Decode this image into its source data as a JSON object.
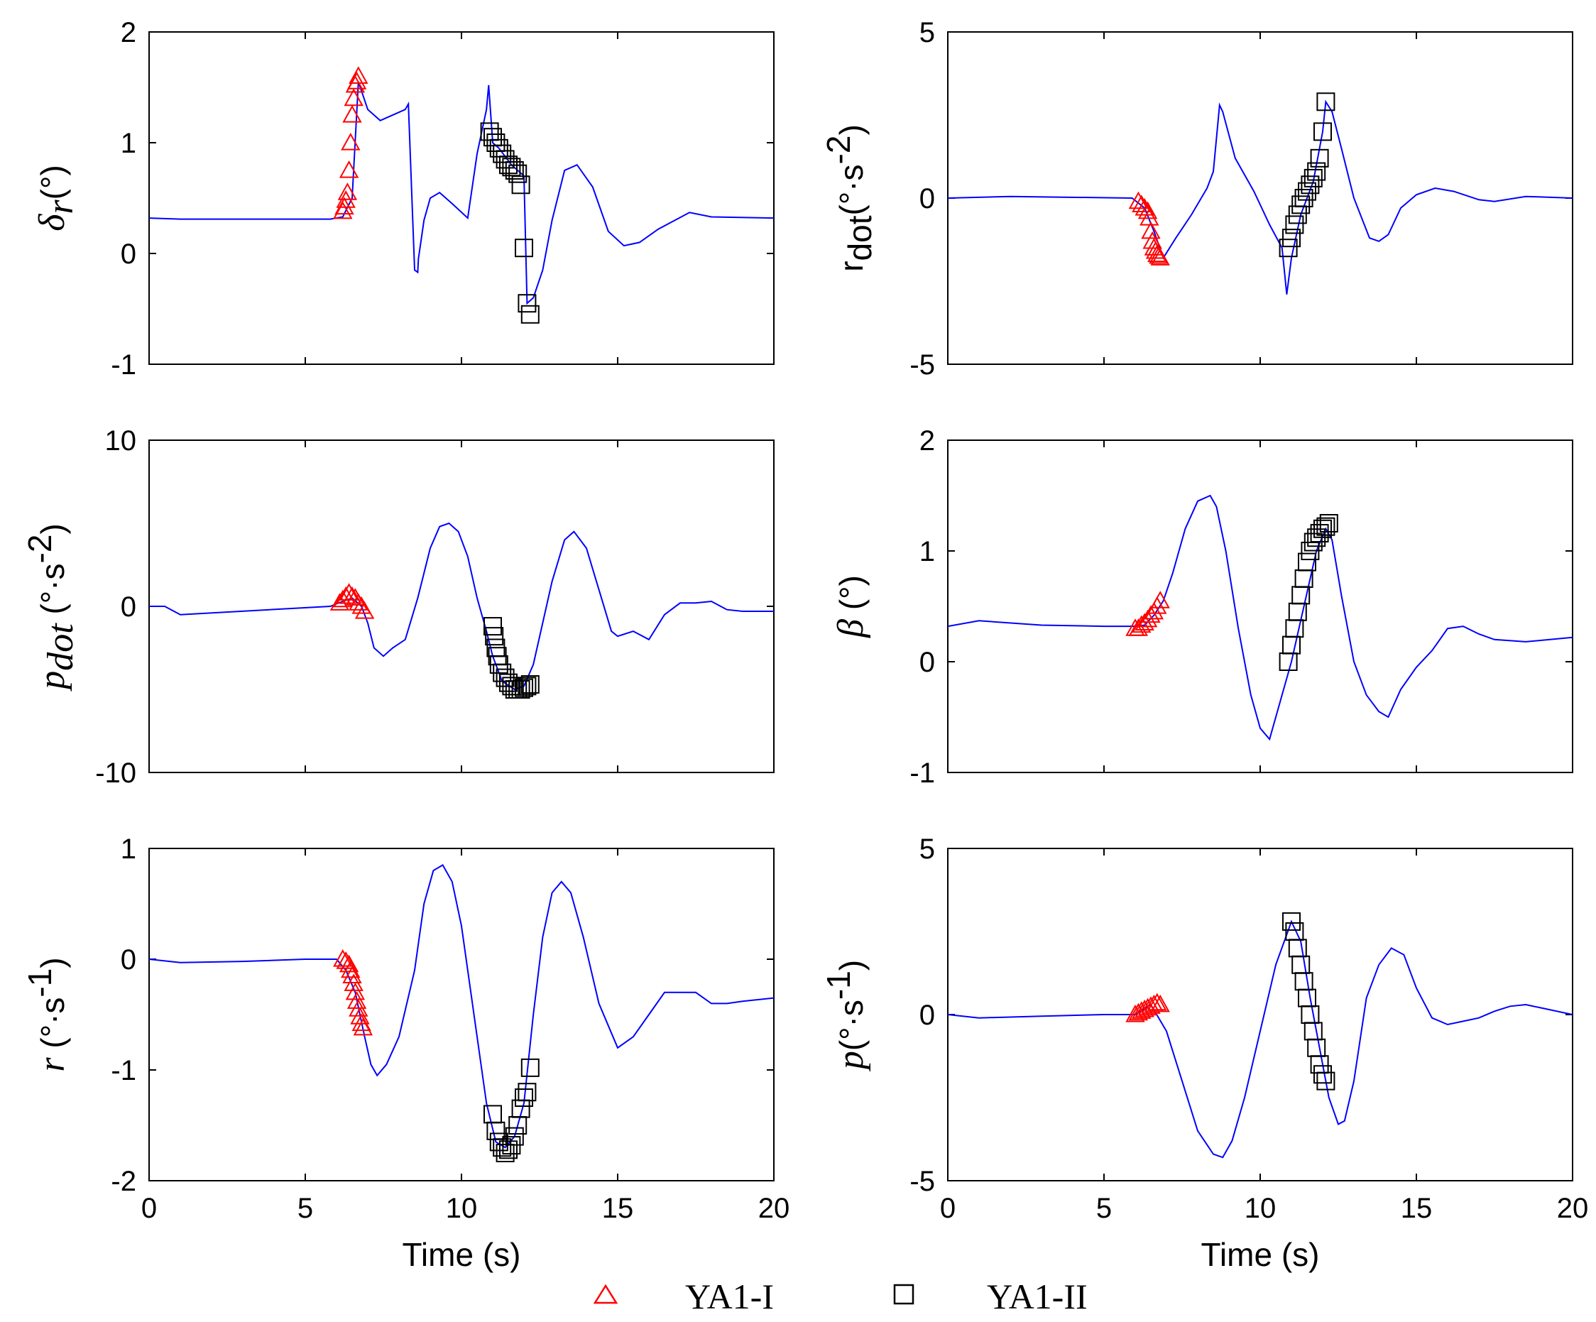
{
  "legend": [
    {
      "label": "YA1-I",
      "marker": "triangle",
      "color": "#ff0000"
    },
    {
      "label": "YA1-II",
      "marker": "square",
      "color": "#000000"
    }
  ],
  "colors": {
    "line": "#0000ff",
    "axes": "#000000"
  },
  "chart_data": [
    {
      "type": "line",
      "ylabel": {
        "sym": "δ",
        "sub": "r",
        "unit": "(°)"
      },
      "xlim": [
        0,
        20
      ],
      "ylim": [
        -1,
        2
      ],
      "xticks": [
        "0",
        "5",
        "10",
        "15",
        "20"
      ],
      "yticks": [
        "-1",
        "0",
        "1",
        "2"
      ],
      "xticklabels_shown": false,
      "xlabel": "",
      "series": [
        {
          "x": [
            0,
            1,
            5.8,
            6.2,
            6.5,
            6.7,
            7.0,
            7.4,
            8.2,
            8.3,
            8.5,
            8.6,
            8.62,
            8.8,
            9.0,
            9.3,
            9.7,
            10.2,
            10.5,
            10.8,
            10.87,
            11.0,
            11.2,
            11.6,
            12.0,
            12.1,
            12.3,
            12.6,
            12.9,
            13.3,
            13.7,
            14.2,
            14.7,
            15.2,
            15.7,
            16.3,
            17.3,
            18.0,
            20
          ],
          "y": [
            0.32,
            0.31,
            0.31,
            0.33,
            0.5,
            1.55,
            1.3,
            1.2,
            1.3,
            1.35,
            -0.15,
            -0.17,
            -0.05,
            0.3,
            0.5,
            0.55,
            0.45,
            0.32,
            0.9,
            1.3,
            1.52,
            1.0,
            0.95,
            0.8,
            0.7,
            -0.45,
            -0.4,
            -0.15,
            0.3,
            0.75,
            0.8,
            0.6,
            0.2,
            0.07,
            0.1,
            0.22,
            0.37,
            0.33,
            0.32
          ]
        }
      ],
      "markers_a": {
        "x": [
          6.2,
          6.25,
          6.3,
          6.35,
          6.4,
          6.45,
          6.5,
          6.55,
          6.6,
          6.65,
          6.7
        ],
        "y": [
          0.38,
          0.42,
          0.48,
          0.55,
          0.75,
          1.0,
          1.25,
          1.4,
          1.52,
          1.55,
          1.6
        ]
      },
      "markers_b": {
        "x": [
          10.9,
          11.0,
          11.1,
          11.2,
          11.3,
          11.4,
          11.5,
          11.6,
          11.7,
          11.8,
          11.9,
          12.0,
          12.1,
          12.2
        ],
        "y": [
          1.1,
          1.05,
          1.0,
          0.95,
          0.9,
          0.85,
          0.8,
          0.78,
          0.75,
          0.72,
          0.62,
          0.05,
          -0.45,
          -0.55
        ]
      }
    },
    {
      "type": "line",
      "ylabel": {
        "sym": "r",
        "sub": "dot",
        "unit": "(°·s",
        "sup": "-2",
        "end": ")",
        "plain": true
      },
      "xlim": [
        0,
        20
      ],
      "ylim": [
        -5,
        5
      ],
      "xticks": [
        "0",
        "5",
        "10",
        "15",
        "20"
      ],
      "yticks": [
        "-5",
        "0",
        "5"
      ],
      "xticklabels_shown": false,
      "xlabel": "",
      "series": [
        {
          "x": [
            0,
            2,
            5.9,
            6.3,
            6.6,
            6.9,
            7.3,
            7.8,
            8.3,
            8.5,
            8.7,
            8.8,
            9.2,
            9.8,
            10.3,
            10.7,
            10.85,
            11.0,
            11.3,
            11.7,
            12.0,
            12.1,
            12.3,
            12.6,
            13.0,
            13.5,
            13.8,
            14.1,
            14.5,
            15.0,
            15.6,
            16.2,
            17.0,
            17.5,
            18.5,
            20
          ],
          "y": [
            0.0,
            0.05,
            0.0,
            -0.3,
            -1.0,
            -1.8,
            -1.2,
            -0.5,
            0.3,
            0.8,
            2.8,
            2.6,
            1.2,
            0.2,
            -0.8,
            -1.5,
            -2.9,
            -1.8,
            -0.5,
            0.5,
            2.0,
            2.9,
            2.6,
            1.5,
            0.0,
            -1.2,
            -1.3,
            -1.1,
            -0.3,
            0.1,
            0.3,
            0.2,
            -0.05,
            -0.1,
            0.05,
            0.0
          ]
        }
      ],
      "markers_a": {
        "x": [
          6.1,
          6.2,
          6.3,
          6.4,
          6.45,
          6.5,
          6.55,
          6.6,
          6.65,
          6.7,
          6.75,
          6.8
        ],
        "y": [
          -0.1,
          -0.2,
          -0.3,
          -0.4,
          -0.6,
          -1.0,
          -1.3,
          -1.5,
          -1.6,
          -1.7,
          -1.75,
          -1.8
        ]
      },
      "markers_b": {
        "x": [
          10.9,
          11.0,
          11.1,
          11.2,
          11.3,
          11.4,
          11.5,
          11.6,
          11.7,
          11.8,
          11.9,
          12.0,
          12.1
        ],
        "y": [
          -1.5,
          -1.2,
          -0.8,
          -0.5,
          -0.2,
          0.0,
          0.2,
          0.4,
          0.6,
          0.8,
          1.2,
          2.0,
          2.9
        ]
      }
    },
    {
      "type": "line",
      "ylabel": {
        "sym": "p",
        "sub": "dot",
        "unit": " (°·s",
        "sup": "-2",
        "end": ")"
      },
      "xlim": [
        0,
        20
      ],
      "ylim": [
        -10,
        10
      ],
      "xticks": [
        "0",
        "5",
        "10",
        "15",
        "20"
      ],
      "yticks": [
        "-10",
        "0",
        "10"
      ],
      "xticklabels_shown": false,
      "xlabel": "",
      "series": [
        {
          "x": [
            0,
            0.5,
            1.0,
            5.8,
            6.2,
            6.5,
            6.8,
            7.0,
            7.2,
            7.5,
            7.8,
            8.2,
            8.6,
            9.0,
            9.3,
            9.6,
            9.9,
            10.2,
            10.5,
            10.8,
            11.0,
            11.3,
            11.7,
            12.0,
            12.3,
            12.6,
            12.9,
            13.3,
            13.6,
            14.0,
            14.4,
            14.8,
            15.0,
            15.5,
            16.0,
            16.5,
            17.0,
            17.5,
            18.0,
            18.5,
            19.0,
            20
          ],
          "y": [
            0,
            0,
            -0.5,
            0,
            0.3,
            0.5,
            0,
            -1.0,
            -2.5,
            -3.0,
            -2.5,
            -2.0,
            0.5,
            3.5,
            4.8,
            5.0,
            4.5,
            3.0,
            0.5,
            -1.5,
            -3.0,
            -4.5,
            -5.0,
            -4.8,
            -3.5,
            -1.0,
            1.5,
            4.0,
            4.5,
            3.5,
            1.0,
            -1.5,
            -1.8,
            -1.5,
            -2.0,
            -0.5,
            0.2,
            0.2,
            0.3,
            -0.2,
            -0.3,
            -0.3
          ]
        }
      ],
      "markers_a": {
        "x": [
          6.1,
          6.2,
          6.3,
          6.4,
          6.5,
          6.6,
          6.7,
          6.8,
          6.9
        ],
        "y": [
          0.2,
          0.4,
          0.6,
          0.8,
          0.6,
          0.5,
          0.2,
          0.0,
          -0.3
        ]
      },
      "markers_b": {
        "x": [
          11.0,
          11.05,
          11.1,
          11.15,
          11.2,
          11.3,
          11.4,
          11.5,
          11.6,
          11.7,
          11.8,
          11.9,
          12.0,
          12.1,
          12.2
        ],
        "y": [
          -1.2,
          -1.8,
          -2.5,
          -3.0,
          -3.5,
          -4.0,
          -4.3,
          -4.6,
          -4.8,
          -5.0,
          -5.0,
          -5.0,
          -4.9,
          -4.8,
          -4.7
        ]
      }
    },
    {
      "type": "line",
      "ylabel": {
        "sym": "β",
        "sub": "",
        "unit": " (°)"
      },
      "xlim": [
        0,
        20
      ],
      "ylim": [
        -1,
        2
      ],
      "xticks": [
        "0",
        "5",
        "10",
        "15",
        "20"
      ],
      "yticks": [
        "-1",
        "0",
        "1",
        "2"
      ],
      "xticklabels_shown": false,
      "xlabel": "",
      "series": [
        {
          "x": [
            0,
            1,
            3,
            5,
            6.0,
            6.3,
            6.6,
            6.9,
            7.2,
            7.6,
            8.0,
            8.4,
            8.6,
            8.9,
            9.3,
            9.7,
            10.0,
            10.3,
            10.6,
            11.0,
            11.4,
            11.8,
            12.1,
            12.3,
            12.6,
            13.0,
            13.4,
            13.8,
            14.1,
            14.5,
            15.0,
            15.5,
            16.0,
            16.5,
            17.0,
            17.5,
            18.5,
            20
          ],
          "y": [
            0.32,
            0.37,
            0.33,
            0.32,
            0.32,
            0.33,
            0.42,
            0.55,
            0.8,
            1.2,
            1.45,
            1.5,
            1.4,
            1.0,
            0.3,
            -0.3,
            -0.6,
            -0.7,
            -0.4,
            0.0,
            0.5,
            1.0,
            1.2,
            1.1,
            0.6,
            0.0,
            -0.3,
            -0.45,
            -0.5,
            -0.25,
            -0.05,
            0.1,
            0.3,
            0.32,
            0.25,
            0.2,
            0.18,
            0.22
          ]
        }
      ],
      "markers_a": {
        "x": [
          6.0,
          6.1,
          6.2,
          6.3,
          6.4,
          6.5,
          6.6,
          6.7,
          6.8
        ],
        "y": [
          0.3,
          0.3,
          0.33,
          0.35,
          0.38,
          0.42,
          0.45,
          0.5,
          0.55
        ]
      },
      "markers_b": {
        "x": [
          10.9,
          11.0,
          11.1,
          11.2,
          11.3,
          11.4,
          11.5,
          11.6,
          11.7,
          11.8,
          11.9,
          12.0,
          12.1,
          12.2
        ],
        "y": [
          0.0,
          0.15,
          0.3,
          0.45,
          0.6,
          0.75,
          0.9,
          1.0,
          1.08,
          1.12,
          1.16,
          1.2,
          1.22,
          1.25
        ]
      }
    },
    {
      "type": "line",
      "ylabel": {
        "sym": "r",
        "sub": "",
        "unit": " (°·s",
        "sup": "-1",
        "end": ")"
      },
      "xlim": [
        0,
        20
      ],
      "ylim": [
        -2,
        1
      ],
      "xticks": [
        "0",
        "5",
        "10",
        "15",
        "20"
      ],
      "yticks": [
        "-2",
        "-1",
        "0",
        "1"
      ],
      "xticklabels_shown": true,
      "xlabel": "Time (s)",
      "series": [
        {
          "x": [
            0,
            1,
            3,
            5,
            6.0,
            6.3,
            6.6,
            6.9,
            7.1,
            7.3,
            7.6,
            8.0,
            8.5,
            8.8,
            9.1,
            9.4,
            9.7,
            10.0,
            10.4,
            10.8,
            11.1,
            11.4,
            11.7,
            12.0,
            12.3,
            12.6,
            12.9,
            13.2,
            13.5,
            13.9,
            14.4,
            15.0,
            15.5,
            16.0,
            16.5,
            17.0,
            17.5,
            18.0,
            18.5,
            19.0,
            20
          ],
          "y": [
            0,
            -0.03,
            -0.02,
            0,
            0.0,
            -0.1,
            -0.3,
            -0.7,
            -0.95,
            -1.05,
            -0.95,
            -0.7,
            -0.1,
            0.5,
            0.8,
            0.85,
            0.7,
            0.3,
            -0.5,
            -1.3,
            -1.65,
            -1.7,
            -1.6,
            -1.3,
            -0.5,
            0.2,
            0.6,
            0.7,
            0.6,
            0.2,
            -0.4,
            -0.8,
            -0.7,
            -0.5,
            -0.3,
            -0.3,
            -0.3,
            -0.4,
            -0.4,
            -0.38,
            -0.35
          ]
        }
      ],
      "markers_a": {
        "x": [
          6.2,
          6.3,
          6.4,
          6.45,
          6.5,
          6.55,
          6.6,
          6.65,
          6.7,
          6.75,
          6.8,
          6.85
        ],
        "y": [
          0.0,
          -0.02,
          -0.05,
          -0.1,
          -0.15,
          -0.22,
          -0.3,
          -0.38,
          -0.45,
          -0.52,
          -0.58,
          -0.62
        ]
      },
      "markers_b": {
        "x": [
          11.0,
          11.1,
          11.2,
          11.3,
          11.4,
          11.5,
          11.6,
          11.7,
          11.8,
          11.9,
          12.0,
          12.1,
          12.2
        ],
        "y": [
          -1.4,
          -1.55,
          -1.65,
          -1.7,
          -1.75,
          -1.72,
          -1.68,
          -1.6,
          -1.5,
          -1.35,
          -1.25,
          -1.2,
          -0.98
        ]
      }
    },
    {
      "type": "line",
      "ylabel": {
        "sym": "p",
        "sub": "",
        "unit": "(°·s",
        "sup": "-1",
        "end": ")"
      },
      "xlim": [
        0,
        20
      ],
      "ylim": [
        -5,
        5
      ],
      "xticks": [
        "0",
        "5",
        "10",
        "15",
        "20"
      ],
      "yticks": [
        "-5",
        "0",
        "5"
      ],
      "xticklabels_shown": true,
      "xlabel": "Time (s)",
      "series": [
        {
          "x": [
            0,
            1,
            3,
            5,
            6.0,
            6.5,
            7.0,
            7.5,
            8.0,
            8.5,
            8.8,
            9.1,
            9.5,
            10.0,
            10.5,
            11.0,
            11.3,
            11.6,
            11.9,
            12.2,
            12.5,
            12.7,
            13.0,
            13.4,
            13.8,
            14.2,
            14.6,
            15.0,
            15.5,
            16.0,
            16.5,
            17.0,
            17.5,
            18.0,
            18.5,
            19.0,
            20
          ],
          "y": [
            0,
            -0.1,
            -0.05,
            0,
            0,
            0.3,
            -0.5,
            -2.0,
            -3.5,
            -4.2,
            -4.3,
            -3.8,
            -2.5,
            -0.5,
            1.5,
            2.8,
            2.2,
            0.5,
            -1.0,
            -2.5,
            -3.3,
            -3.2,
            -2.0,
            0.5,
            1.5,
            2.0,
            1.8,
            0.8,
            -0.1,
            -0.3,
            -0.2,
            -0.1,
            0.1,
            0.25,
            0.3,
            0.2,
            0.0
          ]
        }
      ],
      "markers_a": {
        "x": [
          6.0,
          6.1,
          6.2,
          6.3,
          6.4,
          6.5,
          6.6,
          6.7,
          6.8
        ],
        "y": [
          0.0,
          0.05,
          0.1,
          0.15,
          0.2,
          0.25,
          0.3,
          0.35,
          0.3
        ]
      },
      "markers_b": {
        "x": [
          11.0,
          11.1,
          11.2,
          11.3,
          11.4,
          11.5,
          11.6,
          11.7,
          11.8,
          11.9,
          12.0,
          12.1
        ],
        "y": [
          2.8,
          2.5,
          2.0,
          1.5,
          1.0,
          0.5,
          0.0,
          -0.5,
          -1.0,
          -1.5,
          -1.8,
          -2.0
        ]
      }
    }
  ]
}
